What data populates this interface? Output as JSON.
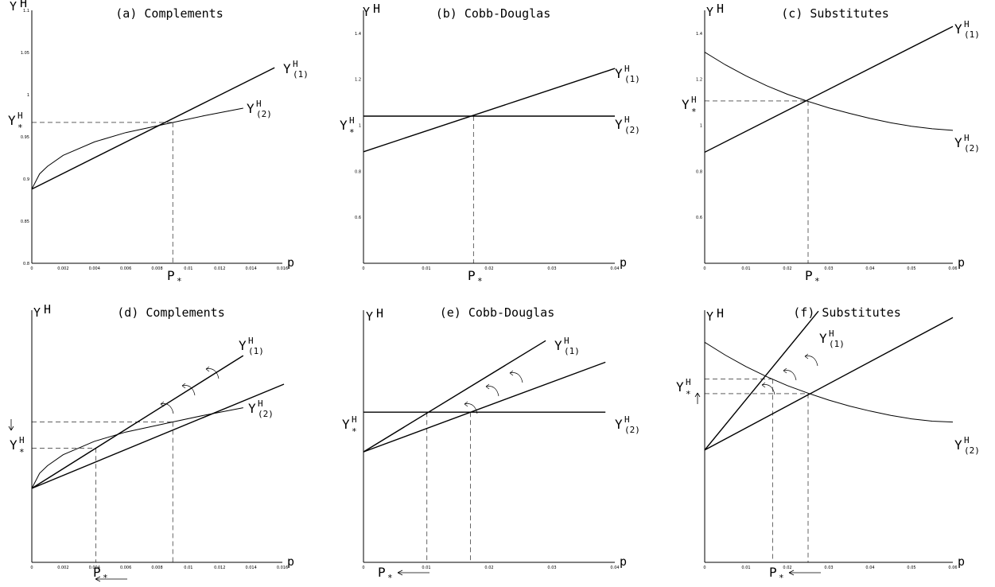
{
  "chart_data": [
    {
      "type": "line",
      "title": "(a) Complements",
      "xlabel": "p",
      "ylabel": "Y",
      "ylabel_sup": "H",
      "xlim": [
        0,
        0.016
      ],
      "ylim": [
        0.8,
        1.1
      ],
      "x_ticks": [
        "0",
        "0.002",
        "0.004",
        "0.006",
        "0.008",
        "0.01",
        "0.012",
        "0.014",
        "0.016"
      ],
      "y_ticks": [
        "0.8",
        "0.85",
        "0.9",
        "0.95",
        "1",
        "1.05",
        "1.1"
      ],
      "series": [
        {
          "name": "Y^H_(1)",
          "x": [
            0,
            0.0155
          ],
          "y": [
            0.888,
            1.032
          ]
        },
        {
          "name": "Y^H_(2)",
          "x": [
            0,
            0.0005,
            0.001,
            0.002,
            0.004,
            0.006,
            0.008,
            0.009,
            0.011,
            0.0135
          ],
          "y": [
            0.888,
            0.906,
            0.915,
            0.928,
            0.944,
            0.955,
            0.963,
            0.967,
            0.975,
            0.984
          ]
        }
      ],
      "equilibrium": {
        "x": 0.009,
        "y": 0.967,
        "x_label": "P",
        "x_label_sub": "*",
        "y_label": "Y",
        "y_label_sup": "H",
        "y_label_sub": "*"
      },
      "curve_labels": [
        {
          "main": "Y",
          "sup": "H",
          "sub": "(1)"
        },
        {
          "main": "Y",
          "sup": "H",
          "sub": "(2)"
        }
      ]
    },
    {
      "type": "line",
      "title": "(b) Cobb-Douglas",
      "xlabel": "p",
      "ylabel": "Y",
      "ylabel_sup": "H",
      "xlim": [
        0,
        0.04
      ],
      "ylim": [
        0.4,
        1.5
      ],
      "x_ticks": [
        "0",
        "0.01",
        "0.02",
        "0.03",
        "0.04"
      ],
      "y_ticks": [
        "0.6",
        "0.8",
        "1",
        "1.2",
        "1.4"
      ],
      "series": [
        {
          "name": "Y^H_(1)",
          "x": [
            0,
            0.04
          ],
          "y": [
            0.885,
            1.247
          ]
        },
        {
          "name": "Y^H_(2)",
          "x": [
            0,
            0.04
          ],
          "y": [
            1.04,
            1.04
          ]
        }
      ],
      "equilibrium": {
        "x": 0.0175,
        "y": 1.04,
        "x_label": "P",
        "x_label_sub": "*",
        "y_label": "Y",
        "y_label_sup": "H",
        "y_label_sub": "*"
      },
      "curve_labels": [
        {
          "main": "Y",
          "sup": "H",
          "sub": "(1)"
        },
        {
          "main": "Y",
          "sup": "H",
          "sub": "(2)"
        }
      ]
    },
    {
      "type": "line",
      "title": "(c) Substitutes",
      "xlabel": "p",
      "ylabel": "Y",
      "ylabel_sup": "H",
      "xlim": [
        0,
        0.06
      ],
      "ylim": [
        0.4,
        1.5
      ],
      "x_ticks": [
        "0",
        "0.01",
        "0.02",
        "0.03",
        "0.04",
        "0.05",
        "0.06"
      ],
      "y_ticks": [
        "0.6",
        "0.8",
        "1",
        "1.2",
        "1.4"
      ],
      "series": [
        {
          "name": "Y^H_(1)",
          "x": [
            0,
            0.06
          ],
          "y": [
            0.883,
            1.43
          ]
        },
        {
          "name": "Y^H_(2)",
          "x": [
            0,
            0.005,
            0.01,
            0.015,
            0.02,
            0.025,
            0.03,
            0.035,
            0.04,
            0.045,
            0.05,
            0.055,
            0.06
          ],
          "y": [
            1.318,
            1.263,
            1.215,
            1.172,
            1.135,
            1.104,
            1.076,
            1.052,
            1.03,
            1.011,
            0.996,
            0.985,
            0.978
          ]
        }
      ],
      "equilibrium": {
        "x": 0.025,
        "y": 1.106,
        "x_label": "P",
        "x_label_sub": "*",
        "y_label": "Y",
        "y_label_sup": "H",
        "y_label_sub": "*"
      },
      "curve_labels": [
        {
          "main": "Y",
          "sup": "H",
          "sub": "(1)"
        },
        {
          "main": "Y",
          "sup": "H",
          "sub": "(2)"
        }
      ]
    },
    {
      "type": "line",
      "title": "(d) Complements",
      "xlabel": "p",
      "ylabel": "Y",
      "ylabel_sup": "H",
      "xlim": [
        0,
        0.016
      ],
      "ylim": [
        0.8,
        1.1
      ],
      "x_ticks": [
        "0",
        "0.002",
        "0.004",
        "0.006",
        "0.008",
        "0.01",
        "0.012",
        "0.014",
        "0.016"
      ],
      "y_ticks": [],
      "series": [
        {
          "name": "Y^H_(1)",
          "x": [
            0,
            0.0135
          ],
          "y": [
            0.888,
            1.046
          ]
        },
        {
          "name": "shifted",
          "x": [
            0,
            0.0161
          ],
          "y": [
            0.888,
            1.012
          ]
        },
        {
          "name": "Y^H_(2)",
          "x": [
            0,
            0.0005,
            0.001,
            0.002,
            0.004,
            0.006,
            0.008,
            0.009,
            0.011,
            0.0135
          ],
          "y": [
            0.888,
            0.906,
            0.915,
            0.928,
            0.944,
            0.955,
            0.963,
            0.967,
            0.975,
            0.984
          ]
        }
      ],
      "equilibrium": {
        "x": 0.009,
        "y": 0.967,
        "x_label": "P",
        "x_label_sub": "*",
        "y_label": "Y",
        "y_label_sup": "H",
        "y_label_sub": "*"
      },
      "new_equilibrium": {
        "x": 0.0041,
        "y": 0.936
      },
      "curve_labels": [
        {
          "main": "Y",
          "sup": "H",
          "sub": "(1)"
        },
        {
          "main": "Y",
          "sup": "H",
          "sub": "(2)"
        }
      ]
    },
    {
      "type": "line",
      "title": "(e) Cobb-Douglas",
      "xlabel": "p",
      "ylabel": "Y",
      "ylabel_sup": "H",
      "xlim": [
        0,
        0.04
      ],
      "ylim": [
        0.4,
        1.5
      ],
      "x_ticks": [
        "0",
        "0.01",
        "0.02",
        "0.03",
        "0.04"
      ],
      "y_ticks": [],
      "series": [
        {
          "name": "Y^H_(1)",
          "x": [
            0,
            0.029
          ],
          "y": [
            0.882,
            1.367
          ]
        },
        {
          "name": "shifted",
          "x": [
            0,
            0.0385
          ],
          "y": [
            0.882,
            1.273
          ]
        },
        {
          "name": "Y^H_(2)",
          "x": [
            0,
            0.0385
          ],
          "y": [
            1.055,
            1.055
          ]
        }
      ],
      "equilibrium": {
        "x": 0.017,
        "y": 1.055,
        "x_label": "P",
        "x_label_sub": "*",
        "y_label": "Y",
        "y_label_sup": "H",
        "y_label_sub": "*"
      },
      "new_equilibrium": {
        "x": 0.0101,
        "y": 1.055
      },
      "curve_labels": [
        {
          "main": "Y",
          "sup": "H",
          "sub": "(1)"
        },
        {
          "main": "Y",
          "sup": "H",
          "sub": "(2)"
        }
      ]
    },
    {
      "type": "line",
      "title": "(f) Substitutes",
      "xlabel": "p",
      "ylabel": "Y",
      "ylabel_sup": "H",
      "xlim": [
        0,
        0.06
      ],
      "ylim": [
        0.4,
        1.5
      ],
      "x_ticks": [
        "0",
        "0.01",
        "0.02",
        "0.03",
        "0.04",
        "0.05",
        "0.06"
      ],
      "y_ticks": [],
      "series": [
        {
          "name": "Y^H_(1)",
          "x": [
            0,
            0.0275
          ],
          "y": [
            0.89,
            1.496
          ]
        },
        {
          "name": "shifted",
          "x": [
            0,
            0.06
          ],
          "y": [
            0.89,
            1.468
          ]
        },
        {
          "name": "Y^H_(2)",
          "x": [
            0,
            0.005,
            0.01,
            0.015,
            0.02,
            0.025,
            0.03,
            0.035,
            0.04,
            0.045,
            0.05,
            0.055,
            0.06
          ],
          "y": [
            1.36,
            1.304,
            1.254,
            1.21,
            1.171,
            1.138,
            1.108,
            1.082,
            1.06,
            1.041,
            1.026,
            1.016,
            1.012
          ]
        }
      ],
      "equilibrium": {
        "x": 0.025,
        "y": 1.136,
        "x_label": "P",
        "x_label_sub": "*",
        "y_label": "Y",
        "y_label_sup": "H",
        "y_label_sub": "*"
      },
      "new_equilibrium": {
        "x": 0.0164,
        "y": 1.2
      },
      "curve_labels": [
        {
          "main": "Y",
          "sup": "H",
          "sub": "(1)"
        },
        {
          "main": "Y",
          "sup": "H",
          "sub": "(2)"
        }
      ]
    }
  ]
}
